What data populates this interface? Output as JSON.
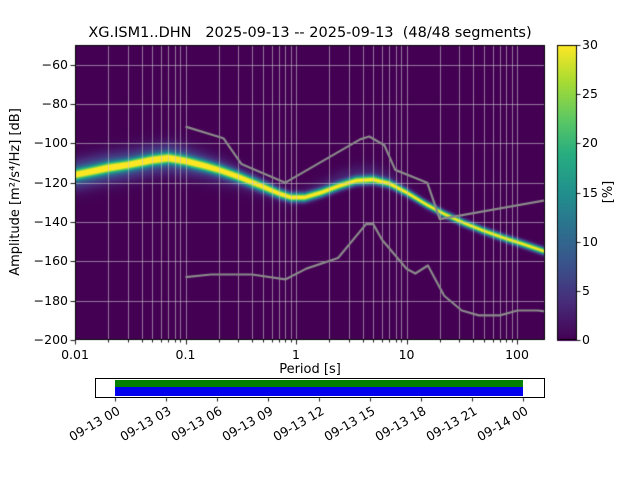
{
  "title": "XG.ISM1..DHN   2025-09-13 -- 2025-09-13  (48/48 segments)",
  "chart_data": {
    "type": "heatmap",
    "subtype": "ppsd-spectral-probability",
    "title": "XG.ISM1..DHN   2025-09-13 -- 2025-09-13  (48/48 segments)",
    "xlabel": "Period [s]",
    "ylabel": "Amplitude [m²/s⁴/Hz] [dB]",
    "colorbar_label": "[%]",
    "x_scale": "log",
    "grid": true,
    "xlim": [
      0.01,
      179
    ],
    "ylim": [
      -200,
      -50
    ],
    "clim": [
      0,
      30
    ],
    "x_ticks": [
      0.01,
      0.1,
      1,
      10,
      100
    ],
    "x_tick_labels": [
      "0.01",
      "0.1",
      "1",
      "10",
      "100"
    ],
    "y_ticks": [
      -60,
      -80,
      -100,
      -120,
      -140,
      -160,
      -180,
      -200
    ],
    "y_tick_labels": [
      "−60",
      "−80",
      "−100",
      "−120",
      "−140",
      "−160",
      "−180",
      "−200"
    ],
    "colorbar_ticks": [
      0,
      5,
      10,
      15,
      20,
      25,
      30
    ],
    "colorbar_tick_labels": [
      "0",
      "5",
      "10",
      "15",
      "20",
      "25",
      "30"
    ],
    "colors": {
      "background": "#440154",
      "grid": "#c8c8c8",
      "noise_model": "#8a8a8a",
      "axes": "#000000",
      "timeline_green": "#008000",
      "timeline_blue": "#0000ee"
    },
    "colormap": {
      "name": "viridis",
      "stops": [
        [
          0,
          "#440154"
        ],
        [
          0.13,
          "#472c7a"
        ],
        [
          0.25,
          "#3b518b"
        ],
        [
          0.38,
          "#2c718e"
        ],
        [
          0.5,
          "#21908d"
        ],
        [
          0.63,
          "#27ad81"
        ],
        [
          0.75,
          "#5cc863"
        ],
        [
          0.88,
          "#aadc32"
        ],
        [
          1,
          "#fde725"
        ]
      ]
    },
    "mode_curve": {
      "periods": [
        0.01,
        0.015,
        0.02,
        0.03,
        0.05,
        0.07,
        0.1,
        0.15,
        0.2,
        0.3,
        0.5,
        0.7,
        0.9,
        1.2,
        1.7,
        2.5,
        3.5,
        5,
        7,
        10,
        15,
        22,
        33,
        50,
        75,
        110,
        179
      ],
      "db": [
        -116,
        -114,
        -112.5,
        -111,
        -108.5,
        -107.5,
        -109,
        -111.5,
        -113.5,
        -117,
        -122,
        -125.5,
        -127.5,
        -127.5,
        -125,
        -121.5,
        -119,
        -118.5,
        -120.5,
        -125,
        -131,
        -136,
        -140.5,
        -144.5,
        -148,
        -151,
        -155
      ],
      "core_peak": [
        24,
        25,
        26,
        26,
        27,
        27,
        27,
        27,
        27,
        28,
        29,
        30,
        30,
        30,
        30,
        30,
        30,
        30,
        30,
        30,
        30,
        30,
        30,
        30,
        30,
        30,
        30
      ],
      "core_sigma": [
        1.8,
        1.8,
        1.8,
        1.8,
        1.8,
        1.8,
        1.8,
        1.8,
        1.8,
        1.8,
        1.8,
        1.6,
        1.5,
        1.5,
        1.5,
        1.5,
        1.5,
        1.5,
        1.4,
        1.3,
        1.2,
        1.2,
        1.2,
        1.2,
        1.2,
        1.2,
        1.2
      ],
      "haze_peak": [
        10,
        10,
        10,
        9,
        9,
        9,
        8,
        7,
        6,
        5,
        3,
        2,
        1.5,
        1.5,
        2,
        2.5,
        2.5,
        2.5,
        2,
        1,
        0.5,
        0,
        0,
        0,
        0,
        0,
        0
      ],
      "haze_sigma": [
        5,
        5,
        5,
        5,
        5,
        5,
        5,
        4.5,
        4.5,
        4,
        3.5,
        3,
        3,
        3,
        3,
        3,
        3,
        3,
        3,
        3,
        3,
        3,
        3,
        3,
        3,
        3,
        3
      ],
      "haze_offset_db": [
        0,
        0,
        0,
        0,
        0,
        0,
        0,
        0,
        0,
        0,
        0,
        0,
        0,
        2,
        3,
        4,
        4,
        4,
        3,
        2,
        0,
        0,
        0,
        0,
        0,
        0,
        0
      ]
    },
    "noise_models": {
      "nhnm": [
        [
          0.1,
          -91.5
        ],
        [
          0.22,
          -97.4
        ],
        [
          0.32,
          -110.5
        ],
        [
          0.8,
          -120
        ],
        [
          3.8,
          -98
        ],
        [
          4.6,
          -96.5
        ],
        [
          6.3,
          -101
        ],
        [
          7.9,
          -113.5
        ],
        [
          15.4,
          -120
        ],
        [
          20,
          -138.5
        ],
        [
          354.8,
          -126
        ]
      ],
      "nlnm": [
        [
          0.1,
          -168
        ],
        [
          0.17,
          -166.7
        ],
        [
          0.4,
          -166.7
        ],
        [
          0.8,
          -169.2
        ],
        [
          1.24,
          -163.7
        ],
        [
          2.4,
          -158.3
        ],
        [
          4.3,
          -141.1
        ],
        [
          5,
          -141.1
        ],
        [
          6,
          -149
        ],
        [
          10,
          -163.8
        ],
        [
          12,
          -166.2
        ],
        [
          15.6,
          -162.1
        ],
        [
          21.9,
          -177.5
        ],
        [
          31.6,
          -185
        ],
        [
          45,
          -187.5
        ],
        [
          70,
          -187.5
        ],
        [
          101,
          -185
        ],
        [
          154,
          -185
        ],
        [
          328,
          -187.5
        ]
      ]
    },
    "timeline": {
      "tick_labels": [
        "09-13 00",
        "09-13 03",
        "09-13 06",
        "09-13 09",
        "09-13 12",
        "09-13 15",
        "09-13 18",
        "09-13 21",
        "09-14 00"
      ]
    }
  }
}
